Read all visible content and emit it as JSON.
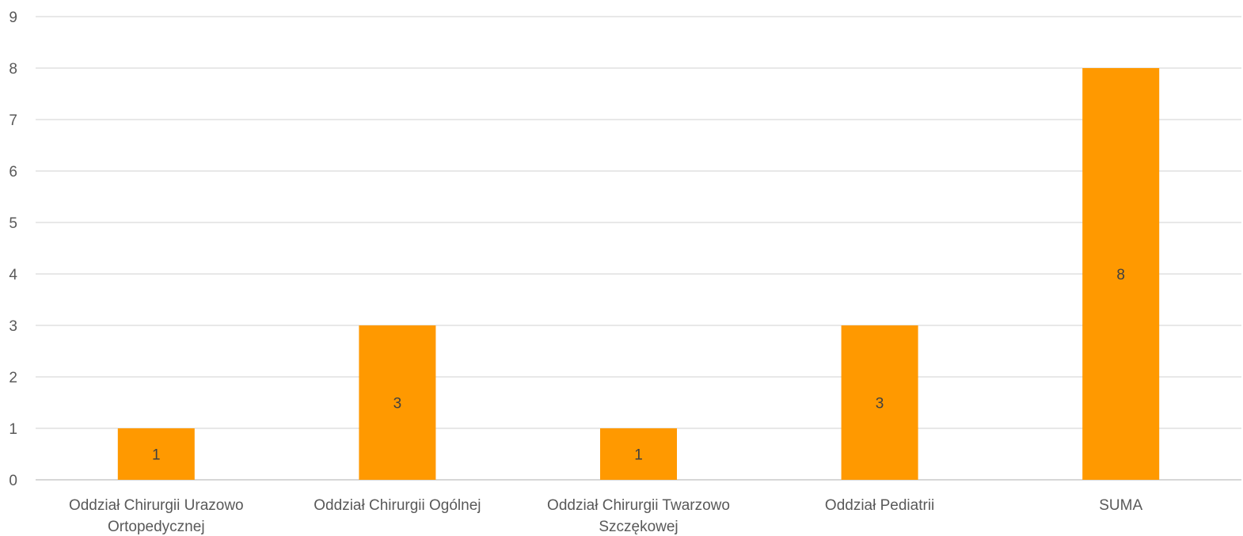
{
  "chart_data": {
    "type": "bar",
    "title": "",
    "xlabel": "",
    "ylabel": "",
    "categories": [
      [
        "Oddział Chirurgii Urazowo",
        "Ortopedycznej"
      ],
      [
        "Oddział Chirurgii Ogólnej"
      ],
      [
        "Oddział Chirurgii Twarzowo",
        "Szczękowej"
      ],
      [
        "Oddział Pediatrii"
      ],
      [
        "SUMA"
      ]
    ],
    "values": [
      1,
      3,
      1,
      3,
      8
    ],
    "data_labels": [
      "1",
      "3",
      "1",
      "3",
      "8"
    ],
    "ylim": [
      0,
      9
    ],
    "yticks": [
      "0",
      "1",
      "2",
      "3",
      "4",
      "5",
      "6",
      "7",
      "8",
      "9"
    ],
    "grid": true,
    "legend": "none",
    "colors": {
      "bar": "#ff9900"
    }
  }
}
